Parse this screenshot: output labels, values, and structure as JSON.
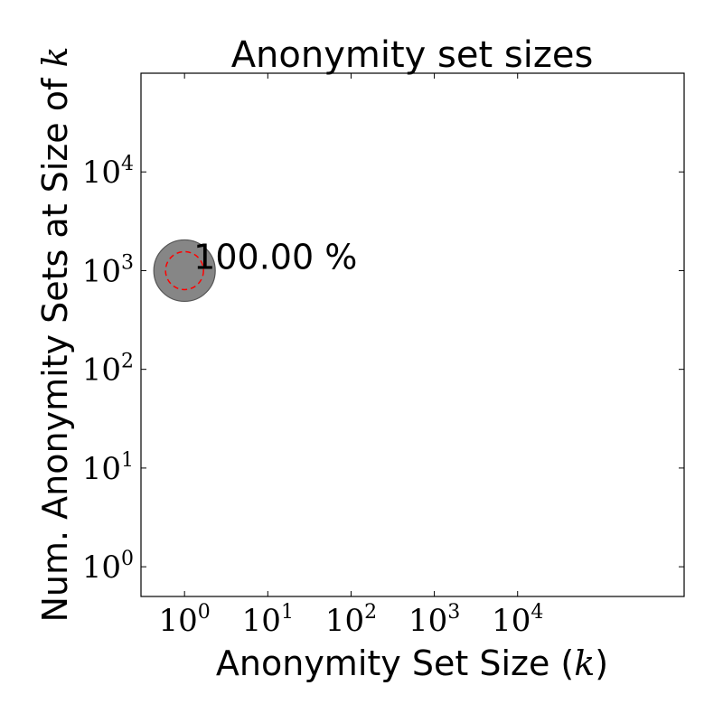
{
  "chart_data": {
    "type": "scatter",
    "title": "Anonymity set sizes",
    "xlabel_prefix": "Anonymity Set Size (",
    "xlabel_var": "k",
    "xlabel_suffix": ")",
    "ylabel_prefix": "Num. Anonymity Sets at Size of ",
    "ylabel_var": "k",
    "x_scale": "log",
    "y_scale": "log",
    "xlim": [
      0.3,
      1000000
    ],
    "ylim": [
      0.5,
      100000
    ],
    "x_ticks": [
      1,
      10,
      100,
      1000,
      10000
    ],
    "y_ticks": [
      1,
      10,
      100,
      1000,
      10000
    ],
    "tick_base": "10",
    "x_tick_exponents": [
      "0",
      "1",
      "2",
      "3",
      "4"
    ],
    "y_tick_exponents": [
      "0",
      "1",
      "2",
      "3",
      "4"
    ],
    "grid": false,
    "points": [
      {
        "x": 1,
        "y": 1000,
        "label": "100.00 %"
      }
    ],
    "colors": {
      "marker_fill": "#7f7f7f",
      "marker_edge": "#555555",
      "dashed_ring": "#ff0000"
    }
  }
}
